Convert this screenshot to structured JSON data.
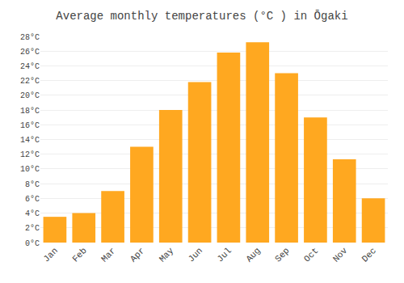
{
  "chart_data": {
    "type": "bar",
    "title": "Average monthly temperatures (°C ) in Ōgaki",
    "categories": [
      "Jan",
      "Feb",
      "Mar",
      "Apr",
      "May",
      "Jun",
      "Jul",
      "Aug",
      "Sep",
      "Oct",
      "Nov",
      "Dec"
    ],
    "values": [
      3.5,
      4.0,
      7.0,
      13.0,
      18.0,
      21.8,
      25.8,
      27.2,
      23.0,
      17.0,
      11.3,
      6.0
    ],
    "color": "#FFA820",
    "ylim": [
      0,
      28
    ],
    "yticks": [
      {
        "value": 0,
        "label": "0°C"
      },
      {
        "value": 2,
        "label": "2°C"
      },
      {
        "value": 4,
        "label": "4°C"
      },
      {
        "value": 6,
        "label": "6°C"
      },
      {
        "value": 8,
        "label": "8°C"
      },
      {
        "value": 10,
        "label": "10°C"
      },
      {
        "value": 12,
        "label": "12°C"
      },
      {
        "value": 14,
        "label": "14°C"
      },
      {
        "value": 16,
        "label": "16°C"
      },
      {
        "value": 18,
        "label": "18°C"
      },
      {
        "value": 20,
        "label": "20°C"
      },
      {
        "value": 22,
        "label": "22°C"
      },
      {
        "value": 24,
        "label": "24°C"
      },
      {
        "value": 26,
        "label": "26°C"
      },
      {
        "value": 28,
        "label": "28°C"
      }
    ],
    "grid": true
  }
}
